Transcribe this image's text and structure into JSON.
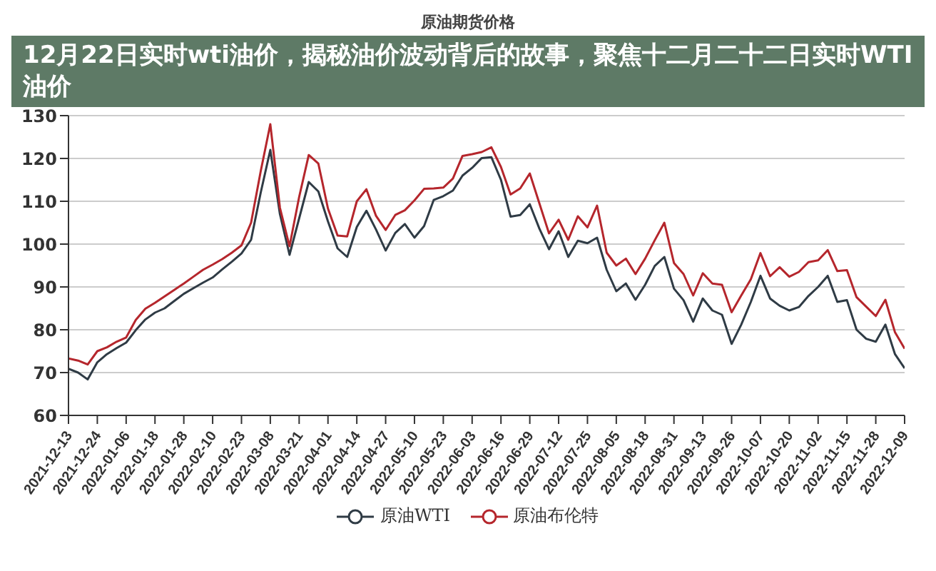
{
  "chart_data": {
    "type": "line",
    "title": "原油期货价格",
    "subtitle": "12月22日实时wti油价，揭秘油价波动背后的故事，聚焦十二月二十二日实时WTI油价",
    "categories": [
      "2021-12-13",
      null,
      null,
      "2021-12-24",
      null,
      null,
      "2022-01-06",
      null,
      null,
      "2022-01-18",
      null,
      null,
      "2022-01-28",
      null,
      null,
      "2022-02-10",
      null,
      null,
      "2022-02-23",
      null,
      null,
      "2022-03-08",
      null,
      null,
      "2022-03-21",
      null,
      null,
      "2022-04-01",
      null,
      null,
      "2022-04-14",
      null,
      null,
      "2022-04-27",
      null,
      null,
      "2022-05-10",
      null,
      null,
      "2022-05-23",
      null,
      null,
      "2022-06-03",
      null,
      null,
      "2022-06-16",
      null,
      null,
      "2022-06-29",
      null,
      null,
      "2022-07-12",
      null,
      null,
      "2022-07-25",
      null,
      null,
      "2022-08-05",
      null,
      null,
      "2022-08-18",
      null,
      null,
      "2022-08-31",
      null,
      null,
      "2022-09-13",
      null,
      null,
      "2022-09-26",
      null,
      null,
      "2022-10-07",
      null,
      null,
      "2022-10-20",
      null,
      null,
      "2022-11-02",
      null,
      null,
      "2022-11-15",
      null,
      null,
      "2022-11-28",
      null,
      null,
      "2022-12-09"
    ],
    "series": [
      {
        "name": "原油WTI",
        "color": "#2f3b45",
        "values": [
          70.9,
          70.0,
          68.4,
          72.4,
          74.3,
          75.7,
          77.0,
          79.9,
          82.4,
          84.0,
          85.0,
          86.7,
          88.4,
          89.7,
          91.0,
          92.2,
          94.1,
          95.9,
          97.8,
          101.0,
          112,
          122,
          107,
          97.5,
          106,
          114.5,
          112.3,
          105.3,
          99,
          97,
          104,
          107.8,
          103.4,
          98.5,
          102.6,
          104.7,
          101.5,
          104.2,
          110.3,
          111.2,
          112.5,
          116,
          117.8,
          120.1,
          120.3,
          115,
          106.4,
          106.8,
          109.3,
          103.6,
          98.8,
          103.0,
          97,
          100.8,
          100.2,
          101.5,
          94,
          89,
          90.8,
          87,
          90.5,
          94.9,
          97,
          89.6,
          86.9,
          81.9,
          87.3,
          84.5,
          83.5,
          76.7,
          81.2,
          86.5,
          92.6,
          87.3,
          85.6,
          84.5,
          85.3,
          87.9,
          90,
          92.6,
          86.5,
          86.9,
          80,
          77.9,
          77.2,
          81.2,
          74.3,
          71
        ]
      },
      {
        "name": "原油布伦特",
        "color": "#b5262c",
        "values": [
          73.3,
          72.8,
          71.9,
          75.0,
          75.9,
          77.2,
          78.2,
          82.3,
          84.9,
          86.3,
          87.8,
          89.3,
          90.8,
          92.4,
          94.0,
          95.2,
          96.5,
          98.0,
          99.7,
          105.0,
          117,
          128,
          108.5,
          99.5,
          111,
          120.8,
          118.8,
          108.3,
          102,
          101.8,
          110,
          112.8,
          106.6,
          103.3,
          106.8,
          107.9,
          110.2,
          112.9,
          113.0,
          113.2,
          115.3,
          120.6,
          121,
          121.5,
          122.6,
          118,
          111.6,
          113,
          116.5,
          109.5,
          102.5,
          105.7,
          101,
          106.5,
          103.9,
          109,
          98,
          95,
          96.6,
          93,
          96.6,
          100.9,
          105,
          95.6,
          93,
          88,
          93.2,
          90.8,
          90.5,
          84.1,
          88,
          91.8,
          97.9,
          92.5,
          94.6,
          92.4,
          93.5,
          95.8,
          96.2,
          98.6,
          93.7,
          93.9,
          87.6,
          85.4,
          83.2,
          87,
          79.4,
          75.6
        ]
      }
    ],
    "ylim": [
      60,
      130
    ],
    "yticks": [
      60,
      70,
      80,
      90,
      100,
      110,
      120,
      130
    ],
    "grid": "y",
    "legend": "bottom",
    "marker": "none",
    "line_style": "solid"
  }
}
